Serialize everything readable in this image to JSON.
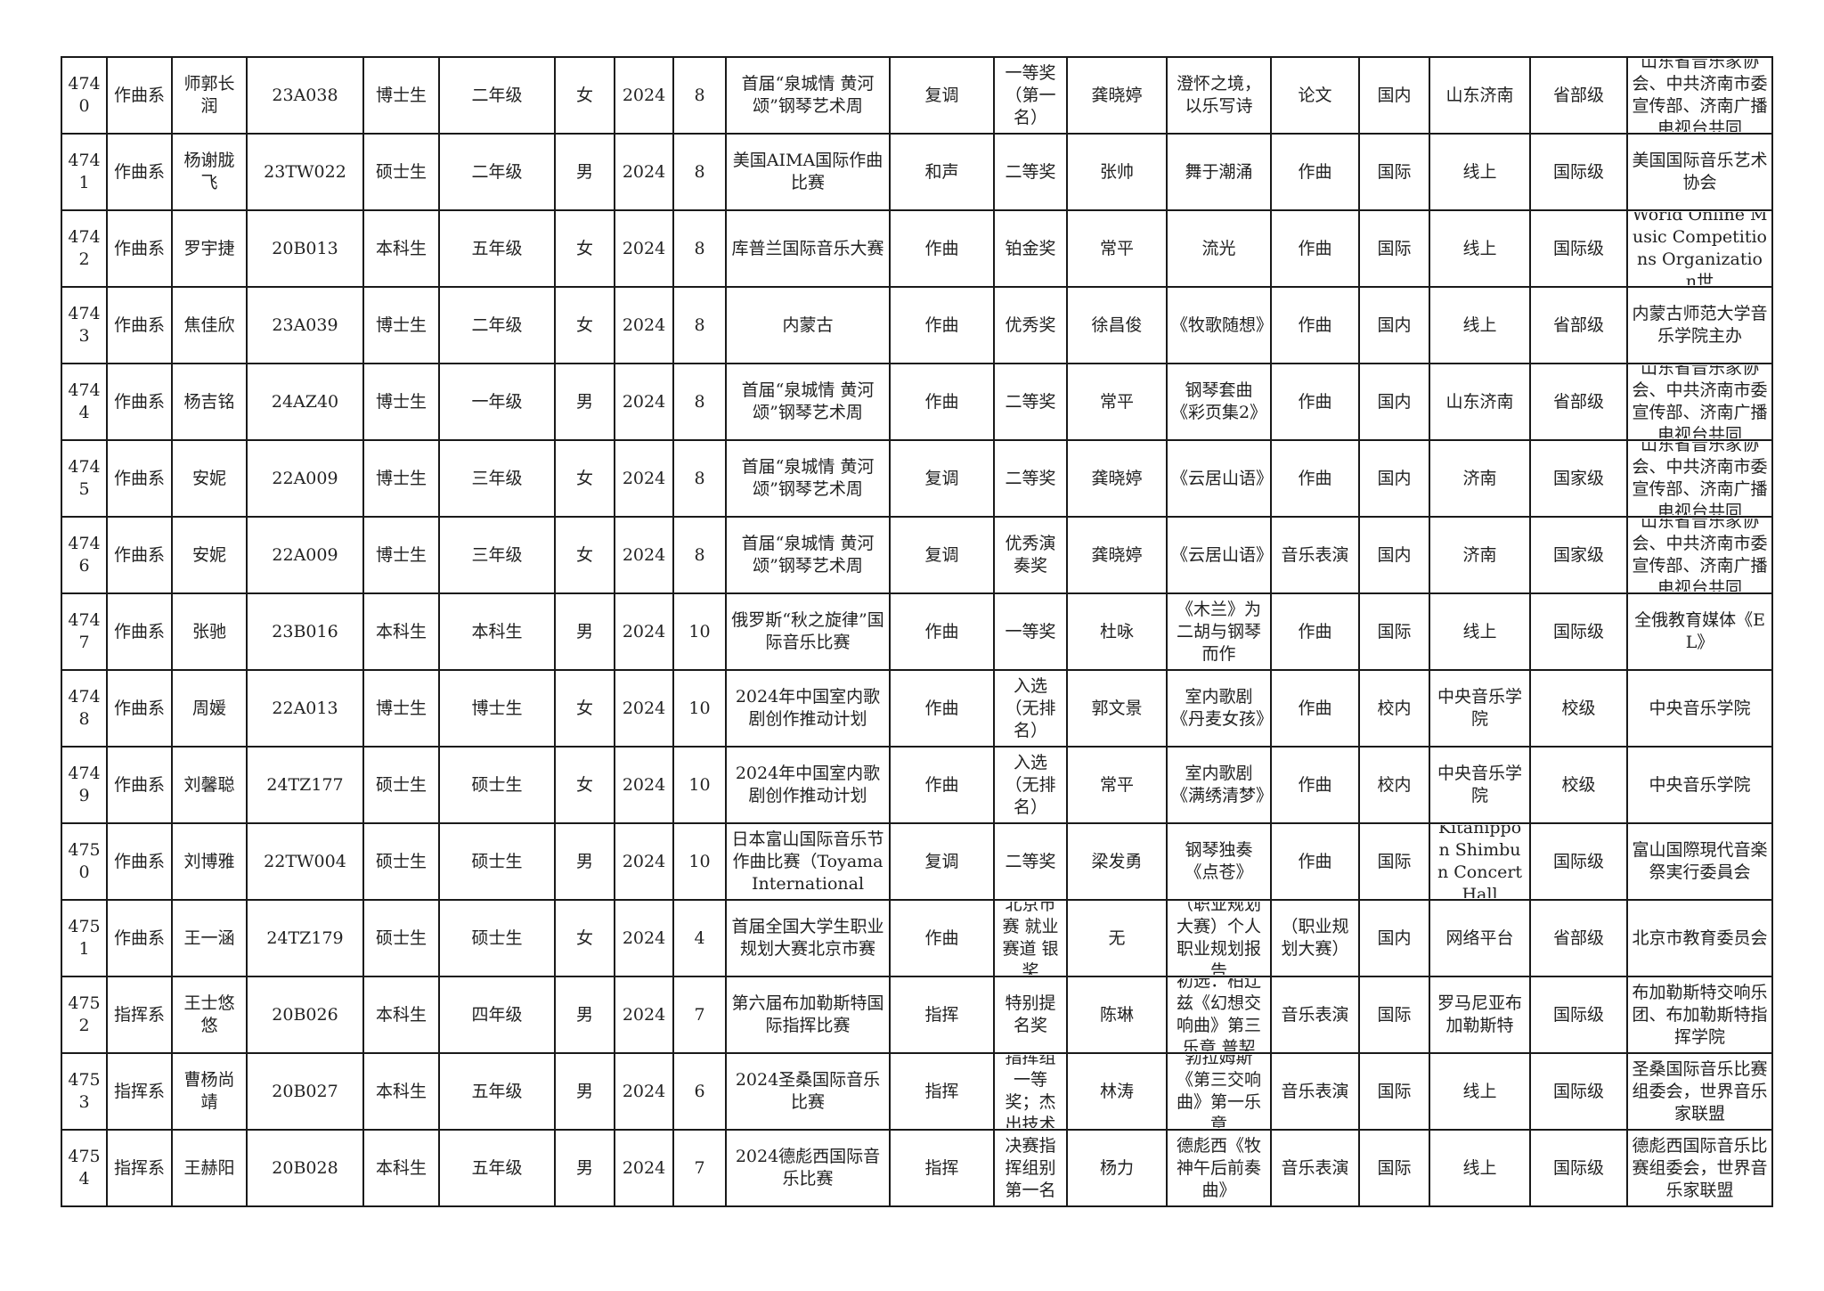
{
  "rows": [
    [
      "4740",
      "作曲系",
      "师郭长润",
      "23A038",
      "博士生",
      "二年级",
      "女",
      "2024",
      "8",
      "首届“泉城情 黄河颂”钢琴艺术周",
      "复调",
      "一等奖（第一名）",
      "龚晓婷",
      "澄怀之境，以乐写诗",
      "论文",
      "国内",
      "山东济南",
      "省部级",
      "山东省音乐家协会、中共济南市委宣传部、济南广播电视台共同"
    ],
    [
      "4741",
      "作曲系",
      "杨谢胧飞",
      "23TW022",
      "硕士生",
      "二年级",
      "男",
      "2024",
      "8",
      "美国AIMA国际作曲比赛",
      "和声",
      "二等奖",
      "张帅",
      "舞于潮涌",
      "作曲",
      "国际",
      "线上",
      "国际级",
      "美国国际音乐艺术协会"
    ],
    [
      "4742",
      "作曲系",
      "罗宇捷",
      "20B013",
      "本科生",
      "五年级",
      "女",
      "2024",
      "8",
      "库普兰国际音乐大赛",
      "作曲",
      "铂金奖",
      "常平",
      "流光",
      "作曲",
      "国际",
      "线上",
      "国际级",
      "World Online Music Competitions Organization世"
    ],
    [
      "4743",
      "作曲系",
      "焦佳欣",
      "23A039",
      "博士生",
      "二年级",
      "女",
      "2024",
      "8",
      "内蒙古",
      "作曲",
      "优秀奖",
      "徐昌俊",
      "《牧歌随想》",
      "作曲",
      "国内",
      "线上",
      "省部级",
      "内蒙古师范大学音乐学院主办"
    ],
    [
      "4744",
      "作曲系",
      "杨吉铭",
      "24AZ40",
      "博士生",
      "一年级",
      "男",
      "2024",
      "8",
      "首届“泉城情 黄河颂”钢琴艺术周",
      "作曲",
      "二等奖",
      "常平",
      "钢琴套曲《彩页集2》",
      "作曲",
      "国内",
      "山东济南",
      "省部级",
      "山东省音乐家协会、中共济南市委宣传部、济南广播电视台共同"
    ],
    [
      "4745",
      "作曲系",
      "安妮",
      "22A009",
      "博士生",
      "三年级",
      "女",
      "2024",
      "8",
      "首届“泉城情 黄河颂”钢琴艺术周",
      "复调",
      "二等奖",
      "龚晓婷",
      "《云居山语》",
      "作曲",
      "国内",
      "济南",
      "国家级",
      "山东省音乐家协会、中共济南市委宣传部、济南广播电视台共同"
    ],
    [
      "4746",
      "作曲系",
      "安妮",
      "22A009",
      "博士生",
      "三年级",
      "女",
      "2024",
      "8",
      "首届“泉城情 黄河颂”钢琴艺术周",
      "复调",
      "优秀演奏奖",
      "龚晓婷",
      "《云居山语》",
      "音乐表演",
      "国内",
      "济南",
      "国家级",
      "山东省音乐家协会、中共济南市委宣传部、济南广播电视台共同"
    ],
    [
      "4747",
      "作曲系",
      "张驰",
      "23B016",
      "本科生",
      "本科生",
      "男",
      "2024",
      "10",
      "俄罗斯“秋之旋律”国际音乐比赛",
      "作曲",
      "一等奖",
      "杜咏",
      "《木兰》为二胡与钢琴而作",
      "作曲",
      "国际",
      "线上",
      "国际级",
      "全俄教育媒体《EL》"
    ],
    [
      "4748",
      "作曲系",
      "周媛",
      "22A013",
      "博士生",
      "博士生",
      "女",
      "2024",
      "10",
      "2024年中国室内歌剧创作推动计划",
      "作曲",
      "入选（无排名）",
      "郭文景",
      "室内歌剧《丹麦女孩》",
      "作曲",
      "校内",
      "中央音乐学院",
      "校级",
      "中央音乐学院"
    ],
    [
      "4749",
      "作曲系",
      "刘馨聪",
      "24TZ177",
      "硕士生",
      "硕士生",
      "女",
      "2024",
      "10",
      "2024年中国室内歌剧创作推动计划",
      "作曲",
      "入选（无排名）",
      "常平",
      "室内歌剧《满绣清梦》",
      "作曲",
      "校内",
      "中央音乐学院",
      "校级",
      "中央音乐学院"
    ],
    [
      "4750",
      "作曲系",
      "刘博雅",
      "22TW004",
      "硕士生",
      "硕士生",
      "男",
      "2024",
      "10",
      "日本富山国际音乐节作曲比赛（Toyama International",
      "复调",
      "二等奖",
      "梁发勇",
      "钢琴独奏《点苍》",
      "作曲",
      "国际",
      "Kitanippon Shimbun Concert Hall",
      "国际级",
      "富山国際現代音楽祭実行委員会"
    ],
    [
      "4751",
      "作曲系",
      "王一涵",
      "24TZ179",
      "硕士生",
      "硕士生",
      "女",
      "2024",
      "4",
      "首届全国大学生职业规划大赛北京市赛",
      "作曲",
      "北京市赛 就业赛道 银奖",
      "无",
      "（职业规划大赛）个人职业规划报告",
      "（职业规划大赛）",
      "国内",
      "网络平台",
      "省部级",
      "北京市教育委员会"
    ],
    [
      "4752",
      "指挥系",
      "王士悠悠",
      "20B026",
      "本科生",
      "四年级",
      "男",
      "2024",
      "7",
      "第六届布加勒斯特国际指挥比赛",
      "指挥",
      "特别提名奖",
      "陈琳",
      "初选：柏辽兹《幻想交响曲》第三乐章 普契",
      "音乐表演",
      "国际",
      "罗马尼亚布加勒斯特",
      "国际级",
      "布加勒斯特交响乐团、布加勒斯特指挥学院"
    ],
    [
      "4753",
      "指挥系",
      "曹杨尚靖",
      "20B027",
      "本科生",
      "五年级",
      "男",
      "2024",
      "6",
      "2024圣桑国际音乐比赛",
      "指挥",
      "指挥组一等奖；杰出技术",
      "林涛",
      "勃拉姆斯《第三交响曲》第一乐章",
      "音乐表演",
      "国际",
      "线上",
      "国际级",
      "圣桑国际音乐比赛组委会，世界音乐家联盟"
    ],
    [
      "4754",
      "指挥系",
      "王赫阳",
      "20B028",
      "本科生",
      "五年级",
      "男",
      "2024",
      "7",
      "2024德彪西国际音乐比赛",
      "指挥",
      "决赛指挥组别第一名",
      "杨力",
      "德彪西《牧神午后前奏曲》",
      "音乐表演",
      "国际",
      "线上",
      "国际级",
      "德彪西国际音乐比赛组委会，世界音乐家联盟"
    ]
  ]
}
